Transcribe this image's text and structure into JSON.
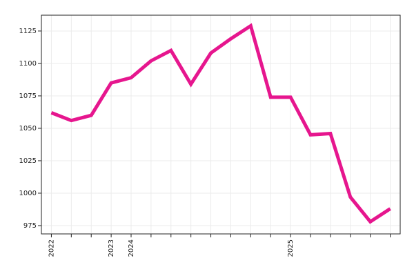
{
  "chart_data": {
    "type": "line",
    "categories": [
      "2022",
      null,
      null,
      "2023",
      "2024",
      null,
      null,
      null,
      null,
      null,
      null,
      null,
      "2025",
      null,
      null,
      null,
      null,
      null
    ],
    "series": [
      {
        "color": "#e6168e",
        "values": [
          1062,
          1056,
          1060,
          1085,
          1089,
          1102,
          1110,
          1084,
          1108,
          1119,
          1129,
          1074,
          1074,
          1045,
          1046,
          997,
          978,
          988
        ]
      }
    ],
    "ylim": [
      968.6,
      1137.2
    ],
    "yticks": [
      975,
      1000,
      1025,
      1050,
      1075,
      1100,
      1125
    ],
    "grid": true
  }
}
